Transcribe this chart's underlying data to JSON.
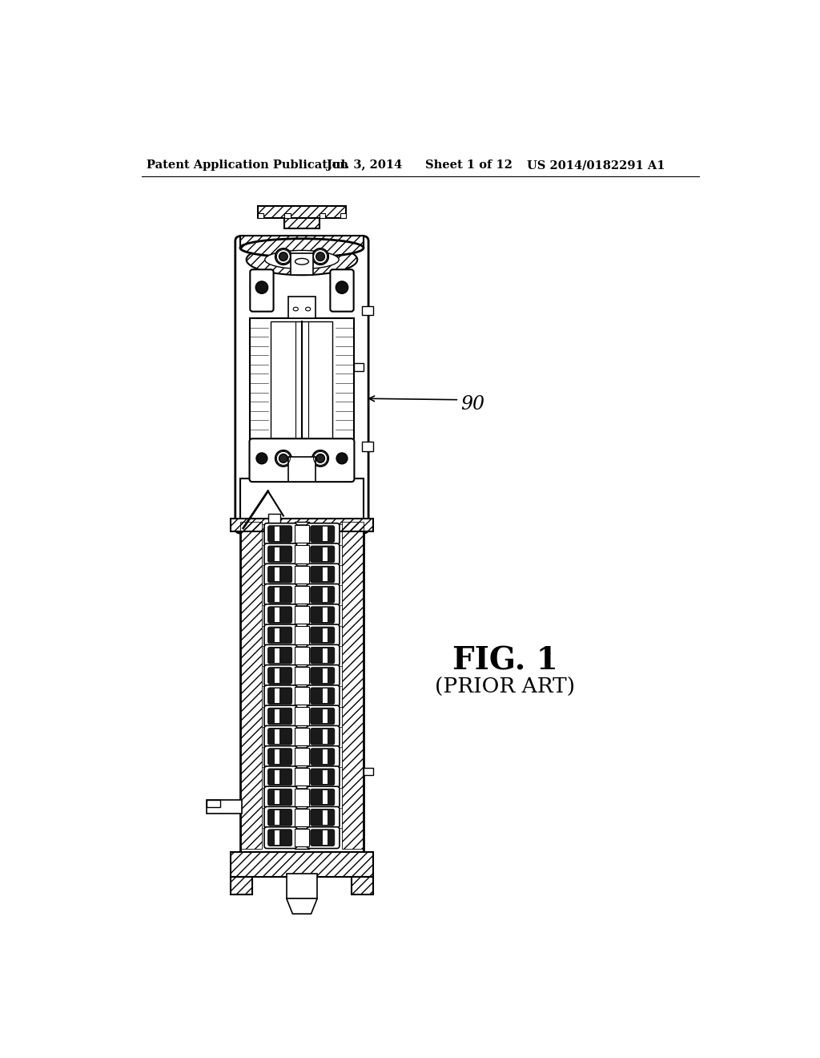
{
  "title": "Patent Application Publication",
  "date": "Jul. 3, 2014",
  "sheet": "Sheet 1 of 12",
  "patent_num": "US 2014/0182291 A1",
  "fig_label": "FIG. 1",
  "fig_sublabel": "(PRIOR ART)",
  "ref_num": "90",
  "bg_color": "#ffffff",
  "line_color": "#000000",
  "header_fontsize": 10.5,
  "fig_label_fontsize": 28,
  "sublabel_fontsize": 19,
  "ref_fontsize": 17
}
